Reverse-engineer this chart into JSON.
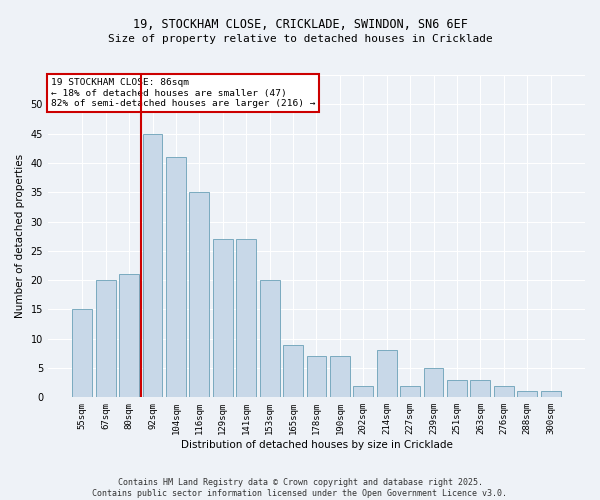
{
  "title_line1": "19, STOCKHAM CLOSE, CRICKLADE, SWINDON, SN6 6EF",
  "title_line2": "Size of property relative to detached houses in Cricklade",
  "xlabel": "Distribution of detached houses by size in Cricklade",
  "ylabel": "Number of detached properties",
  "categories": [
    "55sqm",
    "67sqm",
    "80sqm",
    "92sqm",
    "104sqm",
    "116sqm",
    "129sqm",
    "141sqm",
    "153sqm",
    "165sqm",
    "178sqm",
    "190sqm",
    "202sqm",
    "214sqm",
    "227sqm",
    "239sqm",
    "251sqm",
    "263sqm",
    "276sqm",
    "288sqm",
    "300sqm"
  ],
  "values": [
    15,
    20,
    21,
    45,
    41,
    35,
    27,
    27,
    20,
    9,
    7,
    7,
    2,
    8,
    2,
    5,
    3,
    3,
    2,
    1,
    1
  ],
  "bar_color": "#c8d8e8",
  "bar_edge_color": "#7aaabf",
  "vline_color": "#cc0000",
  "annotation_text": "19 STOCKHAM CLOSE: 86sqm\n← 18% of detached houses are smaller (47)\n82% of semi-detached houses are larger (216) →",
  "annotation_box_color": "#ffffff",
  "annotation_box_edge": "#cc0000",
  "footer_text": "Contains HM Land Registry data © Crown copyright and database right 2025.\nContains public sector information licensed under the Open Government Licence v3.0.",
  "ylim": [
    0,
    55
  ],
  "background_color": "#eef2f7",
  "grid_color": "#ffffff"
}
